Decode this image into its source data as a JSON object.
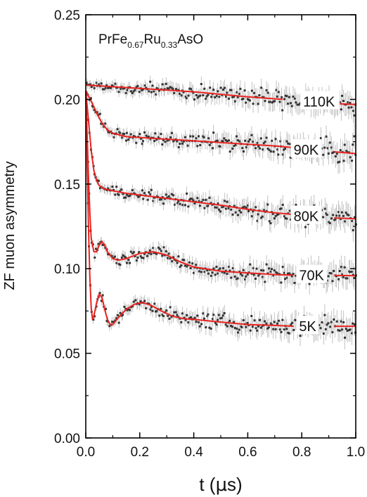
{
  "chart_data": {
    "type": "scatter",
    "title": "",
    "compound": {
      "base": "PrFe",
      "sub1": "0.67",
      "mid": "Ru",
      "sub2": "0.33",
      "end": "AsO"
    },
    "xlabel": {
      "main": "t (",
      "mu": "μ",
      "unit": "s)"
    },
    "ylabel": "ZF muon asymmetry",
    "xlim": [
      0.0,
      1.0
    ],
    "ylim": [
      0.0,
      0.25
    ],
    "xticks": [
      "0.0",
      "0.2",
      "0.4",
      "0.6",
      "0.8",
      "1.0"
    ],
    "yticks": [
      "0.00",
      "0.05",
      "0.10",
      "0.15",
      "0.20",
      "0.25"
    ],
    "grid": false,
    "colors": {
      "data": "#333333",
      "fit": "#e8231f",
      "errorbar": "#b3b3b3"
    },
    "series": [
      {
        "name": "110K",
        "label_x": 0.805,
        "fit": {
          "x": [
            0.0,
            0.2,
            0.4,
            0.6,
            0.73
          ],
          "y": [
            0.2085,
            0.2065,
            0.2045,
            0.2015,
            0.2
          ]
        },
        "fit_tail": {
          "x": [
            0.92,
            1.0
          ],
          "y": [
            0.1975,
            0.197
          ]
        }
      },
      {
        "name": "90K",
        "label_x": 0.77,
        "fit": {
          "x": [
            0.0,
            0.02,
            0.04,
            0.06,
            0.08,
            0.1,
            0.15,
            0.2,
            0.3,
            0.4,
            0.5,
            0.6,
            0.7,
            0.77
          ],
          "y": [
            0.205,
            0.199,
            0.192,
            0.186,
            0.182,
            0.18,
            0.178,
            0.1775,
            0.1765,
            0.1755,
            0.1745,
            0.1735,
            0.1725,
            0.1715
          ]
        },
        "fit_tail": {
          "x": [
            0.92,
            1.0
          ],
          "y": [
            0.169,
            0.168
          ]
        }
      },
      {
        "name": "80K",
        "label_x": 0.77,
        "fit": {
          "x": [
            0.0,
            0.01,
            0.02,
            0.03,
            0.04,
            0.05,
            0.07,
            0.1,
            0.15,
            0.2,
            0.3,
            0.4,
            0.5,
            0.6,
            0.7,
            0.77
          ],
          "y": [
            0.205,
            0.188,
            0.17,
            0.158,
            0.152,
            0.149,
            0.147,
            0.146,
            0.1445,
            0.1435,
            0.1415,
            0.1395,
            0.1375,
            0.135,
            0.133,
            0.132
          ]
        },
        "fit_tail": {
          "x": [
            0.92,
            1.0
          ],
          "y": [
            0.13,
            0.1295
          ]
        }
      },
      {
        "name": "70K",
        "label_x": 0.79,
        "fit": {
          "x": [
            0.0,
            0.005,
            0.01,
            0.015,
            0.02,
            0.03,
            0.04,
            0.05,
            0.06,
            0.07,
            0.08,
            0.1,
            0.12,
            0.15,
            0.2,
            0.25,
            0.3,
            0.35,
            0.4,
            0.5,
            0.6,
            0.7,
            0.77
          ],
          "y": [
            0.205,
            0.18,
            0.155,
            0.133,
            0.118,
            0.11,
            0.11,
            0.114,
            0.116,
            0.114,
            0.11,
            0.106,
            0.105,
            0.106,
            0.109,
            0.11,
            0.108,
            0.104,
            0.101,
            0.0985,
            0.0975,
            0.0965,
            0.0962
          ]
        },
        "fit_tail": {
          "x": [
            0.92,
            1.0
          ],
          "y": [
            0.096,
            0.0958
          ]
        }
      },
      {
        "name": "5K",
        "label_x": 0.79,
        "fit": {
          "x": [
            0.0,
            0.005,
            0.01,
            0.015,
            0.02,
            0.025,
            0.03,
            0.04,
            0.05,
            0.06,
            0.07,
            0.08,
            0.09,
            0.1,
            0.12,
            0.15,
            0.18,
            0.21,
            0.24,
            0.28,
            0.32,
            0.36,
            0.4,
            0.5,
            0.6,
            0.7,
            0.77
          ],
          "y": [
            0.205,
            0.165,
            0.125,
            0.095,
            0.077,
            0.07,
            0.072,
            0.08,
            0.085,
            0.083,
            0.076,
            0.07,
            0.067,
            0.067,
            0.071,
            0.076,
            0.079,
            0.08,
            0.0785,
            0.075,
            0.072,
            0.0705,
            0.07,
            0.0685,
            0.067,
            0.0665,
            0.066
          ]
        },
        "fit_tail": {
          "x": [
            0.92,
            1.0
          ],
          "y": [
            0.066,
            0.066
          ]
        }
      }
    ]
  }
}
